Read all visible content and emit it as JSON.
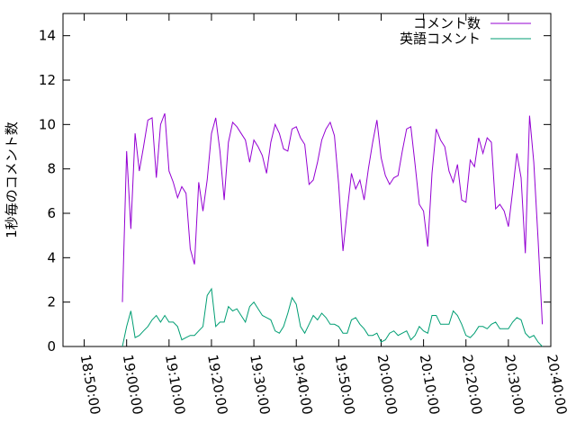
{
  "chart_data": {
    "type": "line",
    "title": "",
    "xlabel": "",
    "ylabel": "1秒毎のコメント数",
    "xlim": [
      "18:45:00",
      "20:40:00"
    ],
    "ylim": [
      0,
      15
    ],
    "x_ticks": [
      "18:50:00",
      "19:00:00",
      "19:10:00",
      "19:20:00",
      "19:30:00",
      "19:40:00",
      "19:50:00",
      "20:00:00",
      "20:10:00",
      "20:20:00",
      "20:30:00",
      "20:40:00"
    ],
    "y_ticks": [
      "0",
      "2",
      "4",
      "6",
      "8",
      "10",
      "12",
      "14"
    ],
    "grid": false,
    "legend_position": "top-right",
    "x_start": "18:59:00",
    "x_step_seconds": 60,
    "series": [
      {
        "name": "コメント数",
        "color": "#9400d3",
        "values": [
          2.0,
          8.8,
          5.3,
          9.6,
          7.9,
          9.0,
          10.2,
          10.3,
          7.6,
          10.0,
          10.5,
          7.9,
          7.4,
          6.7,
          7.2,
          6.9,
          4.4,
          3.7,
          7.4,
          6.1,
          7.5,
          9.6,
          10.3,
          8.8,
          6.6,
          9.2,
          10.1,
          9.9,
          9.6,
          9.3,
          8.3,
          9.3,
          9.0,
          8.6,
          7.8,
          9.2,
          10.0,
          9.6,
          8.9,
          8.8,
          9.8,
          9.9,
          9.4,
          9.1,
          7.3,
          7.5,
          8.3,
          9.3,
          9.8,
          10.1,
          9.5,
          7.3,
          4.3,
          6.1,
          7.8,
          7.1,
          7.5,
          6.6,
          8.0,
          9.2,
          10.2,
          8.5,
          7.7,
          7.3,
          7.6,
          7.7,
          8.8,
          9.8,
          9.9,
          8.2,
          6.4,
          6.1,
          4.5,
          7.8,
          9.8,
          9.3,
          9.0,
          7.9,
          7.4,
          8.2,
          6.6,
          6.5,
          8.4,
          8.1,
          9.4,
          8.7,
          9.4,
          9.2,
          6.2,
          6.4,
          6.1,
          5.4,
          7.0,
          8.7,
          7.6,
          4.2,
          10.4,
          8.3,
          4.8,
          1.0
        ]
      },
      {
        "name": "英語コメント",
        "color": "#009e73",
        "values": [
          0.0,
          0.9,
          1.6,
          0.4,
          0.5,
          0.7,
          0.9,
          1.2,
          1.4,
          1.1,
          1.4,
          1.1,
          1.1,
          0.9,
          0.3,
          0.4,
          0.5,
          0.5,
          0.7,
          0.9,
          2.3,
          2.6,
          0.9,
          1.1,
          1.1,
          1.8,
          1.6,
          1.7,
          1.4,
          1.1,
          1.8,
          2.0,
          1.7,
          1.4,
          1.3,
          1.2,
          0.7,
          0.6,
          0.9,
          1.5,
          2.2,
          1.9,
          0.9,
          0.6,
          1.0,
          1.4,
          1.2,
          1.5,
          1.3,
          1.0,
          1.0,
          0.9,
          0.6,
          0.6,
          1.2,
          1.3,
          1.0,
          0.8,
          0.5,
          0.5,
          0.6,
          0.2,
          0.3,
          0.6,
          0.7,
          0.5,
          0.6,
          0.7,
          0.3,
          0.5,
          0.9,
          0.7,
          0.6,
          1.4,
          1.4,
          1.0,
          1.0,
          1.0,
          1.6,
          1.4,
          1.0,
          0.5,
          0.4,
          0.6,
          0.9,
          0.9,
          0.8,
          1.0,
          1.1,
          0.8,
          0.8,
          0.8,
          1.1,
          1.3,
          1.2,
          0.6,
          0.4,
          0.5,
          0.2,
          0.0
        ]
      }
    ]
  }
}
